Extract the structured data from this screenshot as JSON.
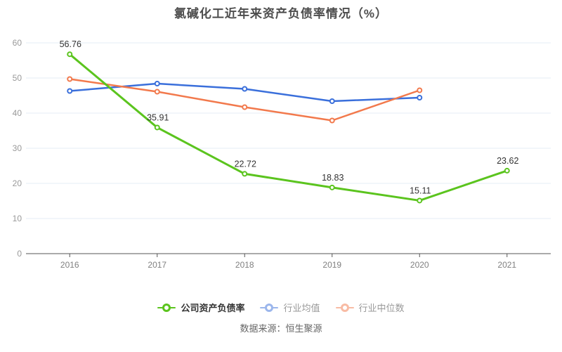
{
  "title": "氯碱化工近年来资产负债率情况（%）",
  "source": "数据来源：恒生聚源",
  "chart_data": {
    "type": "line",
    "title": "氯碱化工近年来资产负债率情况（%）",
    "categories": [
      "2016",
      "2017",
      "2018",
      "2019",
      "2020",
      "2021"
    ],
    "series": [
      {
        "id": "company",
        "name": "公司资产负债率",
        "color": "#5bc41e",
        "values": [
          56.76,
          35.91,
          22.72,
          18.83,
          15.11,
          23.62
        ],
        "show_labels": true,
        "legend_dimmed": false
      },
      {
        "id": "industry-mean",
        "name": "行业均值",
        "color": "#3a6fdb",
        "values": [
          46.3,
          48.4,
          46.9,
          43.4,
          44.4,
          null
        ],
        "show_labels": false,
        "legend_dimmed": true
      },
      {
        "id": "industry-median",
        "name": "行业中位数",
        "color": "#f2794c",
        "values": [
          49.7,
          46.1,
          41.7,
          37.9,
          46.5,
          null
        ],
        "show_labels": false,
        "legend_dimmed": true
      }
    ],
    "ylim": [
      0,
      60
    ],
    "yticks": [
      0,
      10,
      20,
      30,
      40,
      50,
      60
    ],
    "grid": true,
    "legend_position": "bottom"
  },
  "colors": {
    "grid_line": "#e6ecf4",
    "axis_line": "#555555",
    "y_tick_label": "#999999",
    "x_tick_label": "#808080",
    "data_label": "#333333",
    "title_text": "#4d4d4d",
    "source_text": "#666666",
    "legend_active_text": "#333333",
    "legend_dimmed_text": "#999999",
    "background": "#ffffff"
  }
}
